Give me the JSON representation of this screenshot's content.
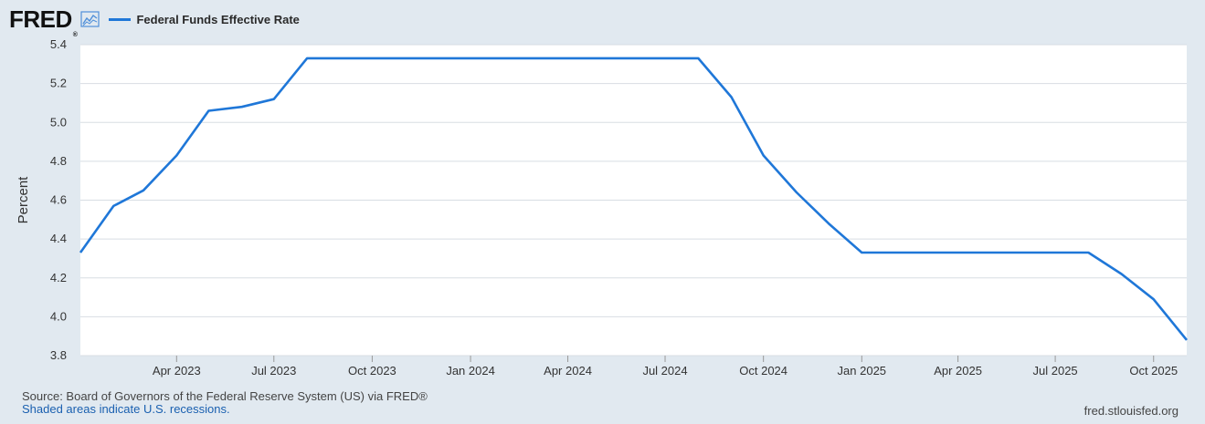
{
  "header": {
    "logo_text": "FRED",
    "logo_reg": "®",
    "logo_icon": "line-chart-icon"
  },
  "colors": {
    "series": "#1f77d8",
    "background": "#e1e9f0",
    "plot_background": "#ffffff",
    "grid": "#d8dde3"
  },
  "chart_data": {
    "type": "line",
    "ylabel": "Percent",
    "ylim": [
      3.8,
      5.4
    ],
    "yticks": [
      "3.8",
      "4.0",
      "4.2",
      "4.4",
      "4.6",
      "4.8",
      "5.0",
      "5.2",
      "5.4"
    ],
    "xlim": [
      "2023-01-01",
      "2025-11-01"
    ],
    "xticks": [
      {
        "date": "2023-04-01",
        "label": "Apr 2023"
      },
      {
        "date": "2023-07-01",
        "label": "Jul 2023"
      },
      {
        "date": "2023-10-01",
        "label": "Oct 2023"
      },
      {
        "date": "2024-01-01",
        "label": "Jan 2024"
      },
      {
        "date": "2024-04-01",
        "label": "Apr 2024"
      },
      {
        "date": "2024-07-01",
        "label": "Jul 2024"
      },
      {
        "date": "2024-10-01",
        "label": "Oct 2024"
      },
      {
        "date": "2025-01-01",
        "label": "Jan 2025"
      },
      {
        "date": "2025-04-01",
        "label": "Apr 2025"
      },
      {
        "date": "2025-07-01",
        "label": "Jul 2025"
      },
      {
        "date": "2025-10-01",
        "label": "Oct 2025"
      }
    ],
    "grid": true,
    "series": [
      {
        "name": "Federal Funds Effective Rate",
        "points": [
          {
            "x": "2023-01-01",
            "y": 4.33
          },
          {
            "x": "2023-02-01",
            "y": 4.57
          },
          {
            "x": "2023-03-01",
            "y": 4.65
          },
          {
            "x": "2023-04-01",
            "y": 4.83
          },
          {
            "x": "2023-05-01",
            "y": 5.06
          },
          {
            "x": "2023-06-01",
            "y": 5.08
          },
          {
            "x": "2023-07-01",
            "y": 5.12
          },
          {
            "x": "2023-08-01",
            "y": 5.33
          },
          {
            "x": "2023-09-01",
            "y": 5.33
          },
          {
            "x": "2023-10-01",
            "y": 5.33
          },
          {
            "x": "2023-11-01",
            "y": 5.33
          },
          {
            "x": "2023-12-01",
            "y": 5.33
          },
          {
            "x": "2024-01-01",
            "y": 5.33
          },
          {
            "x": "2024-02-01",
            "y": 5.33
          },
          {
            "x": "2024-03-01",
            "y": 5.33
          },
          {
            "x": "2024-04-01",
            "y": 5.33
          },
          {
            "x": "2024-05-01",
            "y": 5.33
          },
          {
            "x": "2024-06-01",
            "y": 5.33
          },
          {
            "x": "2024-07-01",
            "y": 5.33
          },
          {
            "x": "2024-08-01",
            "y": 5.33
          },
          {
            "x": "2024-09-01",
            "y": 5.13
          },
          {
            "x": "2024-10-01",
            "y": 4.83
          },
          {
            "x": "2024-11-01",
            "y": 4.64
          },
          {
            "x": "2024-12-01",
            "y": 4.48
          },
          {
            "x": "2025-01-01",
            "y": 4.33
          },
          {
            "x": "2025-02-01",
            "y": 4.33
          },
          {
            "x": "2025-03-01",
            "y": 4.33
          },
          {
            "x": "2025-04-01",
            "y": 4.33
          },
          {
            "x": "2025-05-01",
            "y": 4.33
          },
          {
            "x": "2025-06-01",
            "y": 4.33
          },
          {
            "x": "2025-07-01",
            "y": 4.33
          },
          {
            "x": "2025-08-01",
            "y": 4.33
          },
          {
            "x": "2025-09-01",
            "y": 4.22
          },
          {
            "x": "2025-10-01",
            "y": 4.09
          },
          {
            "x": "2025-11-01",
            "y": 3.88
          }
        ]
      }
    ]
  },
  "footer": {
    "source": "Source: Board of Governors of the Federal Reserve System (US) via FRED®",
    "recessions_note": "Shaded areas indicate U.S. recessions.",
    "site": "fred.stlouisfed.org"
  }
}
